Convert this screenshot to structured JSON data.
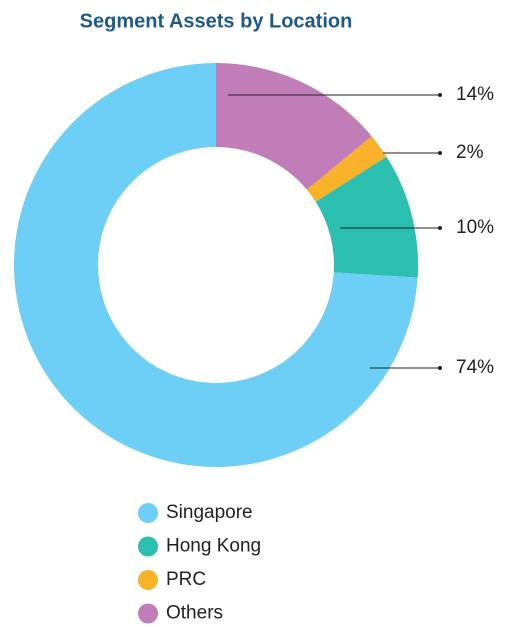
{
  "chart_data": {
    "type": "donut",
    "title": "Segment Assets by Location",
    "categories": [
      "Singapore",
      "Hong Kong",
      "PRC",
      "Others"
    ],
    "values": [
      74,
      10,
      2,
      14
    ],
    "value_labels": [
      "74%",
      "10%",
      "2%",
      "14%"
    ],
    "colors": [
      "#6dcff6",
      "#2bbfb0",
      "#fbb22b",
      "#c07db7"
    ]
  }
}
